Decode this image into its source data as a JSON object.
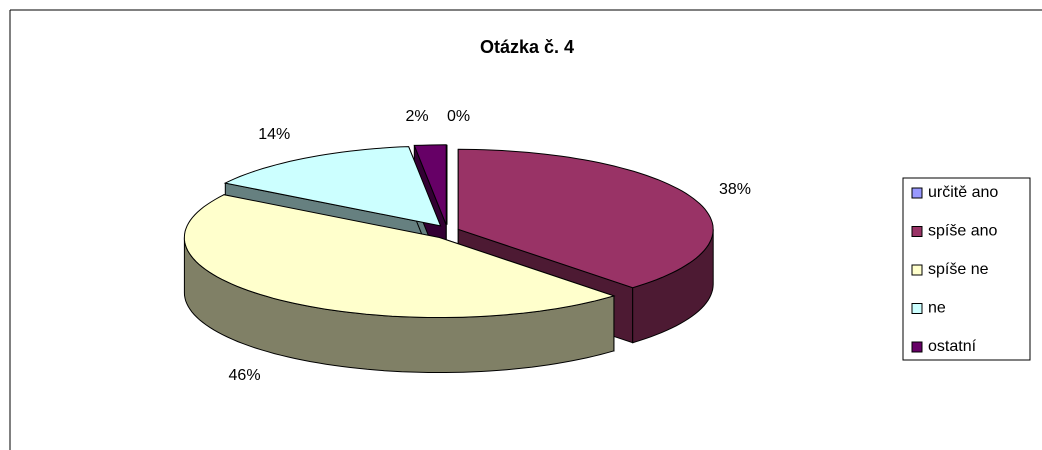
{
  "chart_data": {
    "type": "pie",
    "title": "Otázka č. 4",
    "categories": [
      "určitě ano",
      "spíše ano",
      "spíše ne",
      "ne",
      "ostatní"
    ],
    "values": [
      0,
      38,
      46,
      14,
      2
    ],
    "value_labels": [
      "0%",
      "38%",
      "46%",
      "14%",
      "2%"
    ],
    "colors": [
      "#9999ff",
      "#993366",
      "#ffffcc",
      "#ccffff",
      "#660066"
    ],
    "legend": "right"
  }
}
